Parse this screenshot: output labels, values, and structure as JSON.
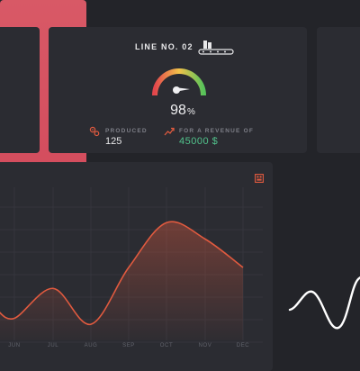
{
  "line_card": {
    "title": "LINE NO. 02",
    "icon": "conveyor-icon",
    "gauge_value": "98",
    "gauge_unit": "%",
    "gauge_level": 0.98,
    "produced_label": "PRODUCED",
    "produced_value": "125",
    "produced_icon": "gears-icon",
    "revenue_label": "FOR A REVENUE OF",
    "revenue_value": "45000 $",
    "revenue_icon": "trend-up-icon",
    "colors": {
      "revenue": "#52c38c",
      "gauge_start": "#e3464c",
      "gauge_mid": "#f3c34a",
      "gauge_end": "#58c35a"
    }
  },
  "chart_data": {
    "type": "area",
    "categories": [
      "JUN",
      "JUL",
      "AUG",
      "SEP",
      "OCT",
      "NOV",
      "DEC"
    ],
    "series": [
      {
        "values": [
          0.78,
          0.58,
          0.82,
          0.44,
          0.14,
          0.25,
          0.44
        ]
      }
    ],
    "ylim": [
      0,
      1
    ],
    "grid": true,
    "color": "#e05a3f"
  },
  "chart_card": {
    "action_icon": "export-icon"
  },
  "accent_card": {
    "color": "#d5505f",
    "sparkline_color": "#ffffff"
  }
}
